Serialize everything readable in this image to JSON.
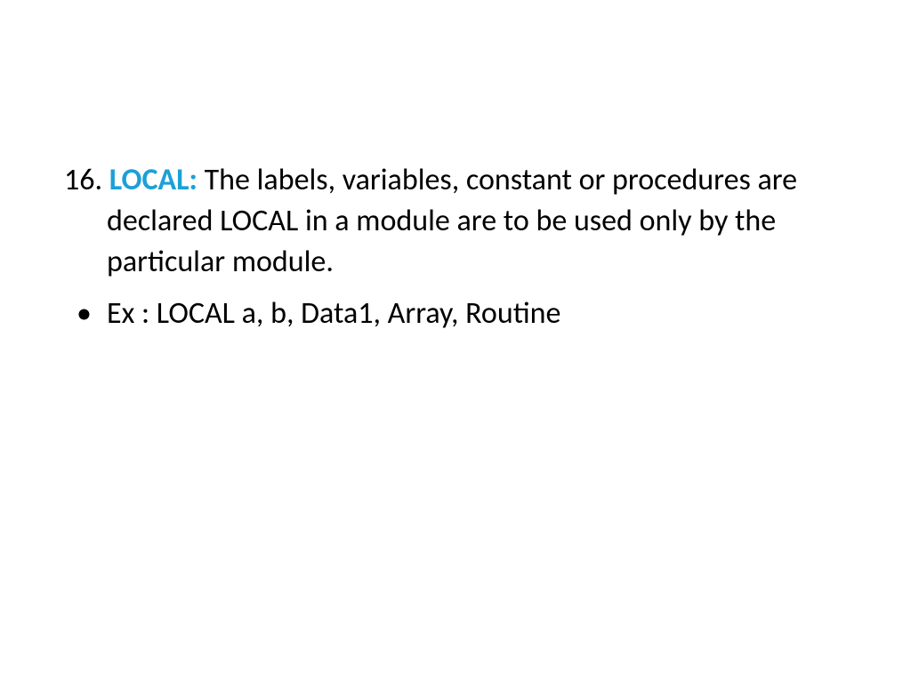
{
  "slide": {
    "background_color": "#ffffff",
    "text_color": "#000000",
    "keyword_color": "#1ca0d8",
    "body_fontsize": 34,
    "font_family": "Calibri",
    "numbered": {
      "number": "16.",
      "keyword": "LOCAL:",
      "description": " The labels, variables, constant or procedures are declared LOCAL in a module are to be used only by the particular module."
    },
    "bullet": {
      "marker": "•",
      "text": "Ex : LOCAL a, b, Data1, Array, Routine"
    }
  }
}
